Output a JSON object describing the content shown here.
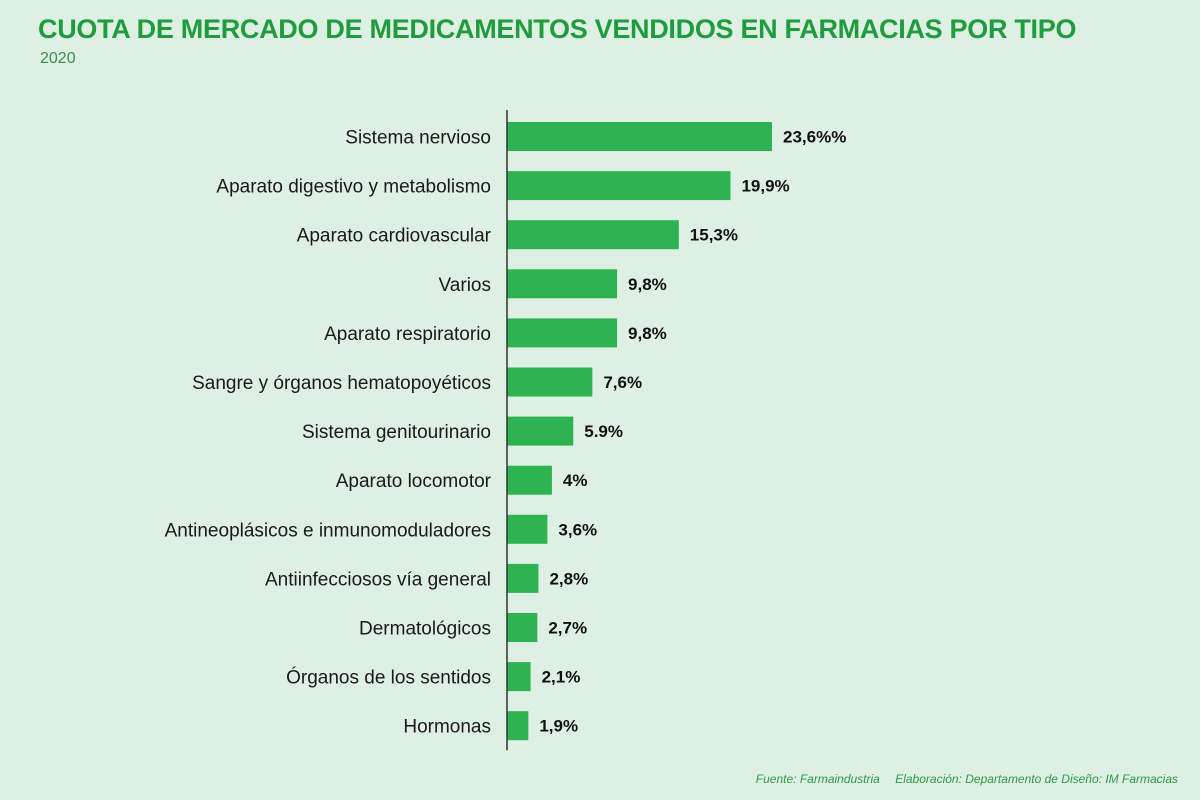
{
  "header": {
    "title": "CUOTA DE MERCADO DE MEDICAMENTOS VENDIDOS EN FARMACIAS POR TIPO",
    "subtitle": "2020"
  },
  "footer": {
    "source": "Fuente: Farmaindustria",
    "credit": "Elaboración: Departamento de Diseño: IM Farmacias"
  },
  "colors": {
    "bar": "#2eb352",
    "axis": "#333333",
    "background": "#deefe3",
    "title": "#1f9c3e"
  },
  "chart_data": {
    "type": "bar",
    "orientation": "horizontal",
    "title": "CUOTA DE MERCADO DE MEDICAMENTOS VENDIDOS EN FARMACIAS POR TIPO",
    "subtitle": "2020",
    "categories": [
      "Sistema nervioso",
      "Aparato digestivo y metabolismo",
      "Aparato cardiovascular",
      "Varios",
      "Aparato respiratorio",
      "Sangre y órganos hematopoyéticos",
      "Sistema genitourinario",
      "Aparato locomotor",
      "Antineoplásicos e inmunomoduladores",
      "Antiinfecciosos vía general",
      "Dermatológicos",
      "Órganos de los sentidos",
      "Hormonas"
    ],
    "values": [
      23.6,
      19.9,
      15.3,
      9.8,
      9.8,
      7.6,
      5.9,
      4,
      3.6,
      2.8,
      2.7,
      2.1,
      1.9
    ],
    "value_labels": [
      "23,6%%",
      "19,9%",
      "15,3%",
      "9,8%",
      "9,8%",
      "7,6%",
      "5.9%",
      "4%",
      "3,6%",
      "2,8%",
      "2,7%",
      "2,1%",
      "1,9%"
    ],
    "xlabel": "",
    "ylabel": "",
    "xlim": [
      0,
      23.6
    ],
    "grid": false,
    "legend": "none"
  }
}
